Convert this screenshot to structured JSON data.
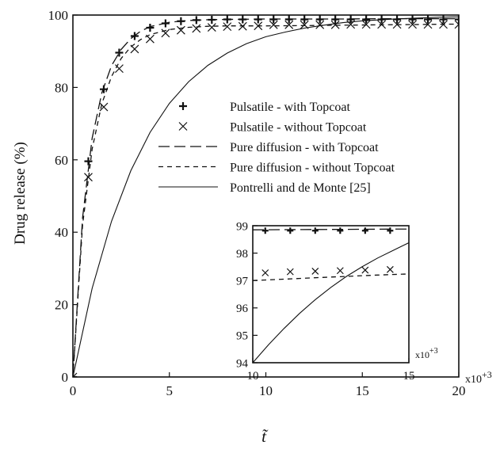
{
  "chart_data": [
    {
      "type": "line",
      "title": "",
      "xlabel": "t̃",
      "ylabel": "Drug release (%)",
      "xlim": [
        0,
        20
      ],
      "ylim": [
        0,
        100
      ],
      "x_ticks": [
        0,
        5,
        10,
        15,
        20
      ],
      "y_ticks": [
        0,
        20,
        40,
        60,
        80,
        100
      ],
      "x_scale_note": "x10+3",
      "grid": false,
      "legend_position": "center-right",
      "series": [
        {
          "name": "Pulsatile - with Topcoat",
          "style": "markers-plus",
          "x": [
            0,
            0.8,
            1.6,
            2.4,
            3.2,
            4.0,
            4.8,
            5.6,
            6.4,
            7.2,
            8.0,
            8.8,
            9.6,
            10.4,
            11.2,
            12.0,
            12.8,
            13.6,
            14.4,
            15.2,
            16.0,
            16.8,
            17.6,
            18.4,
            19.2,
            20.0
          ],
          "y": [
            0,
            59.6,
            79.5,
            89.6,
            94.2,
            96.5,
            97.7,
            98.3,
            98.6,
            98.7,
            98.8,
            98.8,
            98.8,
            98.8,
            98.8,
            98.8,
            98.8,
            98.8,
            98.8,
            98.8,
            98.8,
            98.8,
            98.8,
            98.8,
            98.8,
            98.8
          ]
        },
        {
          "name": "Pulsatile  - without Topcoat",
          "style": "markers-x",
          "x": [
            0,
            0.8,
            1.6,
            2.4,
            3.2,
            4.0,
            4.8,
            5.6,
            6.4,
            7.2,
            8.0,
            8.8,
            9.6,
            10.4,
            11.2,
            12.0,
            12.8,
            13.6,
            14.4,
            15.2,
            16.0,
            16.8,
            17.6,
            18.4,
            19.2,
            20.0
          ],
          "y": [
            0,
            55.2,
            74.6,
            85.2,
            90.6,
            93.4,
            95.0,
            95.8,
            96.3,
            96.6,
            96.8,
            96.9,
            97.0,
            97.3,
            97.3,
            97.3,
            97.3,
            97.3,
            97.4,
            97.4,
            97.4,
            97.4,
            97.4,
            97.4,
            97.4,
            97.4
          ]
        },
        {
          "name": "Pure diffusion - with Topcoat",
          "style": "long-dash",
          "x": [
            0,
            0.5,
            1,
            1.5,
            2,
            2.5,
            3,
            3.5,
            4,
            5,
            6,
            7,
            8,
            10,
            12,
            14,
            16,
            18,
            20
          ],
          "y": [
            0,
            44,
            66,
            78.5,
            86,
            90.5,
            93.5,
            95.5,
            96.8,
            98.0,
            98.5,
            98.7,
            98.8,
            98.9,
            98.9,
            98.9,
            99.0,
            99.0,
            99.0
          ]
        },
        {
          "name": "Pure diffusion - without Topcoat",
          "style": "short-dash",
          "x": [
            0,
            0.5,
            1,
            1.5,
            2,
            2.5,
            3,
            3.5,
            4,
            5,
            6,
            7,
            8,
            10,
            12,
            14,
            16,
            18,
            20
          ],
          "y": [
            0,
            42,
            63,
            75.5,
            83,
            88,
            91.2,
            93.2,
            94.6,
            96.0,
            96.6,
            96.9,
            97.0,
            97.0,
            97.1,
            97.2,
            97.3,
            97.4,
            97.5
          ]
        },
        {
          "name": "Pontrelli and de Monte [25]",
          "style": "solid",
          "x": [
            0,
            1,
            2,
            3,
            4,
            5,
            6,
            7,
            8,
            9,
            10,
            11,
            12,
            13,
            14,
            15,
            16,
            17,
            18,
            19,
            20
          ],
          "y": [
            0,
            24.5,
            43.0,
            57.0,
            67.6,
            75.6,
            81.6,
            86.1,
            89.5,
            92.1,
            94.0,
            95.3,
            96.4,
            97.2,
            97.9,
            98.4,
            98.7,
            99.0,
            99.2,
            99.4,
            99.5
          ]
        }
      ]
    },
    {
      "type": "line",
      "title": "",
      "xlabel": "",
      "ylabel": "",
      "xlim": [
        10,
        15
      ],
      "ylim": [
        94,
        99
      ],
      "x_ticks": [
        10,
        15
      ],
      "y_ticks": [
        94,
        95,
        96,
        97,
        98,
        99
      ],
      "x_scale_note": "x10+3",
      "grid": false,
      "series": [
        {
          "name": "Pulsatile - with Topcoat",
          "style": "markers-plus",
          "x": [
            10.4,
            11.2,
            12.0,
            12.8,
            13.6,
            14.4
          ],
          "y": [
            98.82,
            98.82,
            98.82,
            98.82,
            98.82,
            98.82
          ]
        },
        {
          "name": "Pulsatile  - without Topcoat",
          "style": "markers-x",
          "x": [
            10.4,
            11.2,
            12.0,
            12.8,
            13.6,
            14.4
          ],
          "y": [
            97.28,
            97.32,
            97.34,
            97.36,
            97.38,
            97.4
          ]
        },
        {
          "name": "Pure diffusion - with Topcoat",
          "style": "long-dash",
          "x": [
            10,
            15
          ],
          "y": [
            98.85,
            98.88
          ]
        },
        {
          "name": "Pure diffusion - without Topcoat",
          "style": "short-dash",
          "x": [
            10,
            11,
            12,
            13,
            14,
            15
          ],
          "y": [
            97.0,
            97.05,
            97.1,
            97.15,
            97.2,
            97.24
          ]
        },
        {
          "name": "Pontrelli and de Monte [25]",
          "style": "solid",
          "x": [
            10,
            10.5,
            11,
            11.5,
            12,
            12.5,
            13,
            13.5,
            14,
            14.5,
            15
          ],
          "y": [
            94.0,
            94.65,
            95.25,
            95.8,
            96.3,
            96.75,
            97.15,
            97.5,
            97.82,
            98.1,
            98.38
          ]
        }
      ]
    }
  ]
}
